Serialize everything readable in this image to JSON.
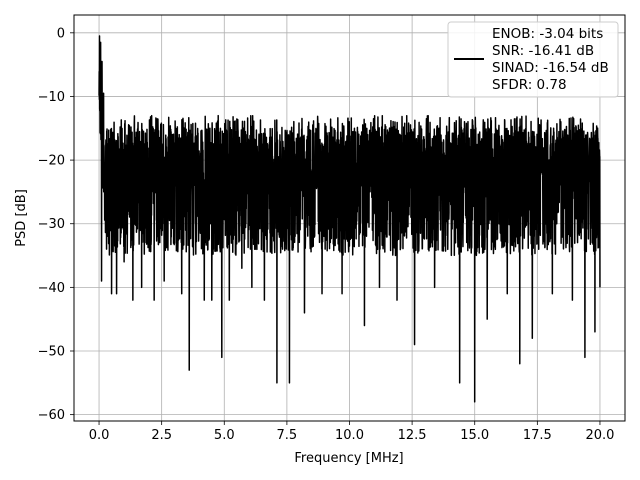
{
  "chart_data": {
    "type": "line",
    "xlabel": "Frequency [MHz]",
    "ylabel": "PSD [dB]",
    "xlim": [
      -1.0,
      21.0
    ],
    "ylim": [
      -61.0,
      2.8
    ],
    "xticks": [
      0.0,
      2.5,
      5.0,
      7.5,
      10.0,
      12.5,
      15.0,
      17.5,
      20.0
    ],
    "xtick_labels": [
      "0.0",
      "2.5",
      "5.0",
      "7.5",
      "10.0",
      "12.5",
      "15.0",
      "17.5",
      "20.0"
    ],
    "yticks": [
      0,
      -10,
      -20,
      -30,
      -40,
      -50,
      -60
    ],
    "ytick_labels": [
      "0",
      "−10",
      "−20",
      "−30",
      "−40",
      "−50",
      "−60"
    ],
    "grid": true,
    "legend_position": "upper-right",
    "legend_lines": [
      "ENOB: -3.04 bits",
      "SNR: -16.41 dB",
      "SINAD: -16.54 dB",
      "SFDR: 0.78"
    ],
    "series": [
      {
        "color": "#000000",
        "x_range": [
          0.0,
          20.0
        ],
        "description_points": [
          [
            0.0,
            -4
          ],
          [
            0.02,
            -0.5
          ],
          [
            0.05,
            -1
          ],
          [
            0.08,
            -12
          ],
          [
            0.1,
            -4
          ],
          [
            0.15,
            -20
          ],
          [
            0.2,
            -10
          ],
          [
            0.3,
            -22
          ],
          [
            0.5,
            -15
          ],
          [
            1.0,
            -18
          ],
          [
            2.0,
            -17
          ],
          [
            3.0,
            -17
          ],
          [
            5.0,
            -18
          ],
          [
            7.5,
            -18
          ],
          [
            10.0,
            -18
          ],
          [
            12.5,
            -18
          ],
          [
            15.0,
            -19
          ],
          [
            17.5,
            -19
          ],
          [
            20.0,
            -20
          ]
        ],
        "deep_minima": [
          [
            0.1,
            -39
          ],
          [
            0.3,
            -34
          ],
          [
            0.5,
            -41
          ],
          [
            0.7,
            -41
          ],
          [
            1.0,
            -36
          ],
          [
            1.35,
            -42
          ],
          [
            1.7,
            -40
          ],
          [
            2.2,
            -42
          ],
          [
            2.6,
            -39
          ],
          [
            3.3,
            -41
          ],
          [
            3.6,
            -53
          ],
          [
            4.2,
            -42
          ],
          [
            4.5,
            -42
          ],
          [
            4.9,
            -51
          ],
          [
            5.2,
            -42
          ],
          [
            5.7,
            -37
          ],
          [
            6.1,
            -40
          ],
          [
            6.6,
            -42
          ],
          [
            7.1,
            -55
          ],
          [
            7.6,
            -55
          ],
          [
            8.2,
            -44
          ],
          [
            8.9,
            -41
          ],
          [
            9.7,
            -41
          ],
          [
            10.6,
            -46
          ],
          [
            11.2,
            -40
          ],
          [
            11.9,
            -42
          ],
          [
            12.6,
            -49
          ],
          [
            13.4,
            -40
          ],
          [
            14.4,
            -55
          ],
          [
            15.0,
            -58
          ],
          [
            15.5,
            -45
          ],
          [
            16.3,
            -41
          ],
          [
            16.8,
            -52
          ],
          [
            17.3,
            -48
          ],
          [
            18.1,
            -41
          ],
          [
            18.9,
            -42
          ],
          [
            19.4,
            -51
          ],
          [
            19.8,
            -47
          ],
          [
            20.0,
            -40
          ]
        ],
        "peaks": [
          [
            0.02,
            -0.5
          ],
          [
            0.06,
            -1.5
          ],
          [
            0.12,
            -4.5
          ],
          [
            0.18,
            -9.5
          ]
        ],
        "upper_envelope": -15.0,
        "lower_envelope": -35.0,
        "sample_count": 3200
      }
    ]
  }
}
